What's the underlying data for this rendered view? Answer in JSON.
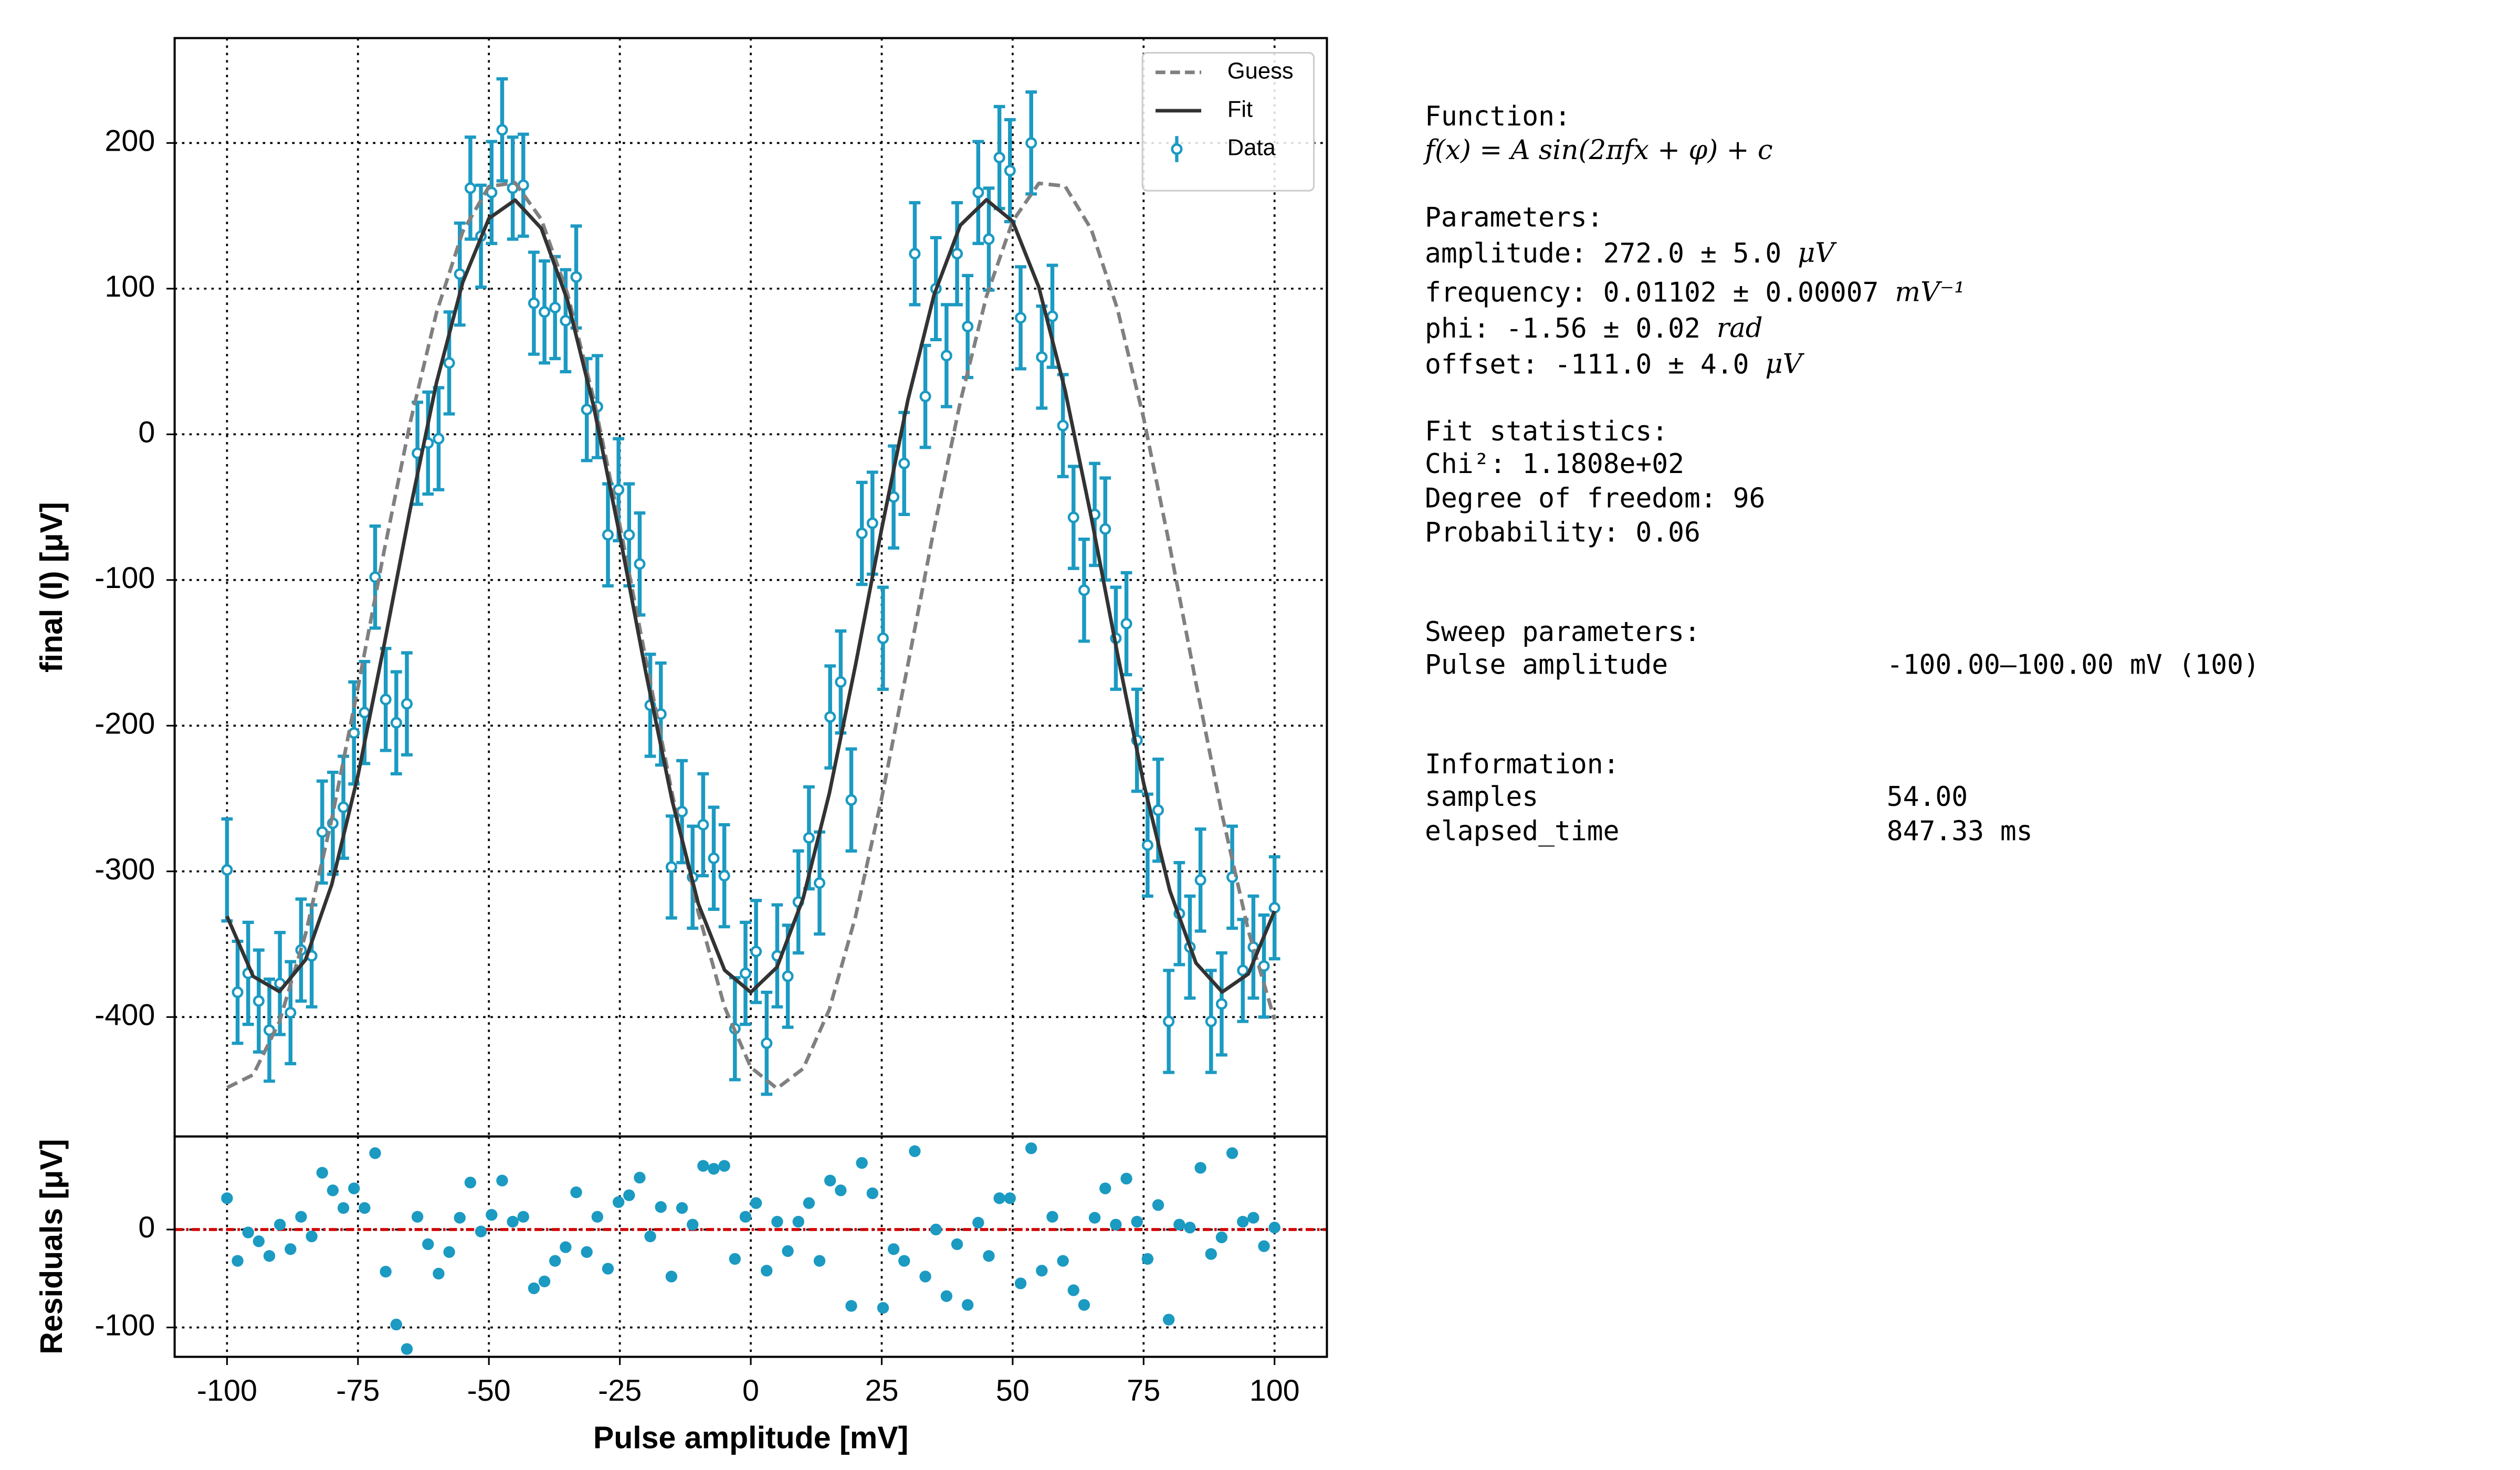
{
  "chart_data": [
    {
      "type": "line",
      "ylabel": "final (I) [μV]",
      "grid": true,
      "legend": "upper right",
      "show_xtick_labels": false,
      "xlim": [
        -110,
        110
      ],
      "ylim": [
        -482,
        272
      ],
      "xticks": [
        -100,
        -75,
        -50,
        -25,
        0,
        25,
        50,
        75,
        100
      ],
      "yticks": [
        -400,
        -300,
        -200,
        -100,
        0,
        100,
        200
      ],
      "series": [
        {
          "name": "Guess",
          "style": "dashed",
          "color": "#808080",
          "x": [
            -100,
            -95,
            -90,
            -85,
            -80,
            -75,
            -70,
            -65,
            -60,
            -55,
            -50,
            -45,
            -40,
            -35,
            -30,
            -25,
            -20,
            -15,
            -10,
            -5,
            0,
            5,
            10,
            15,
            20,
            25,
            30,
            35,
            40,
            45,
            50,
            55,
            60,
            65,
            70,
            75,
            80,
            85,
            90,
            95,
            100
          ],
          "values": [
            -448.5,
            -439.6,
            -403.3,
            -343.0,
            -264.1,
            -173.7,
            -80.0,
            8.5,
            83.6,
            139.1,
            170.1,
            172.7,
            147.6,
            96.7,
            24.5,
            -62.4,
            -155.1,
            -246.8,
            -328.5,
            -393.1,
            -434.5,
            -449.0,
            -435.4,
            -394.8,
            -331.0,
            -249.6,
            -158.1,
            -64.7,
            22.2,
            94.8,
            146.3,
            172.3,
            170.4,
            140.8,
            86.1,
            11.2,
            -77.0,
            -170.7,
            -261.3,
            -340.7,
            -401.7
          ]
        },
        {
          "name": "Fit",
          "style": "solid",
          "color": "#333333",
          "x": [
            -100,
            -95,
            -90,
            -85,
            -80,
            -75,
            -70,
            -65,
            -60,
            -55,
            -50,
            -45,
            -40,
            -35,
            -30,
            -25,
            -20,
            -15,
            -10,
            -5,
            0,
            5,
            10,
            15,
            20,
            25,
            30,
            35,
            40,
            45,
            50,
            55,
            60,
            65,
            70,
            75,
            80,
            85,
            90,
            95,
            100
          ],
          "values": [
            -330.8,
            -372.1,
            -382.5,
            -360.6,
            -309.0,
            -234.2,
            -144.5,
            -51.0,
            35.5,
            104.3,
            148.2,
            160.8,
            141.4,
            92.0,
            19.2,
            -69.6,
            -164.2,
            -251.6,
            -322.4,
            -367.8,
            -383.0,
            -365.8,
            -318.5,
            -246.4,
            -158.3,
            -64.7,
            23.6,
            95.8,
            143.5,
            161.0,
            146.2,
            101.0,
            30.4,
            -56.8,
            -150.5,
            -239.4,
            -313.2,
            -362.9,
            -382.8,
            -370.4,
            -327.2
          ]
        },
        {
          "name": "Data",
          "style": "errorbar",
          "color": "#1b9ac2",
          "error": 35,
          "x": [
            -100,
            -97.98,
            -95.96,
            -93.94,
            -91.92,
            -89.9,
            -87.88,
            -85.86,
            -83.84,
            -81.82,
            -79.8,
            -77.78,
            -75.76,
            -73.74,
            -71.72,
            -69.7,
            -67.68,
            -65.66,
            -63.64,
            -61.62,
            -59.6,
            -57.58,
            -55.56,
            -53.54,
            -51.52,
            -49.49,
            -47.47,
            -45.45,
            -43.43,
            -41.41,
            -39.39,
            -37.37,
            -35.35,
            -33.33,
            -31.31,
            -29.29,
            -27.27,
            -25.25,
            -23.23,
            -21.21,
            -19.19,
            -17.17,
            -15.15,
            -13.13,
            -11.11,
            -9.09,
            -7.07,
            -5.05,
            -3.03,
            -1.01,
            1.01,
            3.03,
            5.05,
            7.07,
            9.09,
            11.11,
            13.13,
            15.15,
            17.17,
            19.19,
            21.21,
            23.23,
            25.25,
            27.27,
            29.29,
            31.31,
            33.33,
            35.35,
            37.37,
            39.39,
            41.41,
            43.43,
            45.45,
            47.47,
            49.49,
            51.52,
            53.54,
            55.56,
            57.58,
            59.6,
            61.62,
            63.64,
            65.66,
            67.68,
            69.7,
            71.72,
            73.74,
            75.76,
            77.78,
            79.8,
            81.82,
            83.84,
            85.86,
            87.88,
            89.9,
            91.92,
            93.94,
            95.96,
            97.98,
            100
          ],
          "values": [
            -299,
            -383,
            -370,
            -389,
            -409,
            -377,
            -397,
            -354,
            -358,
            -273,
            -267,
            -256,
            -205,
            -191,
            -98,
            -182,
            -198,
            -185,
            -13,
            -6,
            -3,
            49,
            110,
            169,
            136,
            166,
            209,
            169,
            171,
            90,
            84,
            87,
            78,
            108,
            17,
            19,
            -69,
            -38,
            -69,
            -89,
            -186,
            -192,
            -297,
            -259,
            -304,
            -268,
            -291,
            -303,
            -408,
            -370,
            -355,
            -418,
            -358,
            -372,
            -321,
            -277,
            -308,
            -194,
            -170,
            -251,
            -68,
            -61,
            -140,
            -43,
            -20,
            124,
            26,
            100,
            54,
            124,
            74,
            166,
            134,
            190,
            181,
            80,
            200,
            53,
            81,
            6,
            -57,
            -107,
            -55,
            -65,
            -140,
            -130,
            -210,
            -282,
            -258,
            -403,
            -329,
            -352,
            -306,
            -403,
            -391,
            -304,
            -368,
            -352,
            -365,
            -325
          ]
        }
      ]
    },
    {
      "type": "scatter",
      "ylabel": "Residuals [μV]",
      "xlabel": "Pulse amplitude [mV]",
      "grid": true,
      "show_xtick_labels": true,
      "xlim": [
        -110,
        110
      ],
      "ylim": [
        -130,
        95
      ],
      "xticks": [
        -100,
        -75,
        -50,
        -25,
        0,
        25,
        50,
        75,
        100
      ],
      "yticks": [
        -100,
        0
      ],
      "hline": 0,
      "hline_color": "#d40000",
      "series": [
        {
          "color": "#1b9ac2",
          "x": [
            -100,
            -97.98,
            -95.96,
            -93.94,
            -91.92,
            -89.9,
            -87.88,
            -85.86,
            -83.84,
            -81.82,
            -79.8,
            -77.78,
            -75.76,
            -73.74,
            -71.72,
            -69.7,
            -67.68,
            -65.66,
            -63.64,
            -61.62,
            -59.6,
            -57.58,
            -55.56,
            -53.54,
            -51.52,
            -49.49,
            -47.47,
            -45.45,
            -43.43,
            -41.41,
            -39.39,
            -37.37,
            -35.35,
            -33.33,
            -31.31,
            -29.29,
            -27.27,
            -25.25,
            -23.23,
            -21.21,
            -19.19,
            -17.17,
            -15.15,
            -13.13,
            -11.11,
            -9.09,
            -7.07,
            -5.05,
            -3.03,
            -1.01,
            1.01,
            3.03,
            5.05,
            7.07,
            9.09,
            11.11,
            13.13,
            15.15,
            17.17,
            19.19,
            21.21,
            23.23,
            25.25,
            27.27,
            29.29,
            31.31,
            33.33,
            35.35,
            37.37,
            39.39,
            41.41,
            43.43,
            45.45,
            47.47,
            49.49,
            51.52,
            53.54,
            55.56,
            57.58,
            59.6,
            61.62,
            63.64,
            65.66,
            67.68,
            69.7,
            71.72,
            73.74,
            75.76,
            77.78,
            79.8,
            81.82,
            83.84,
            85.86,
            87.88,
            89.9,
            91.92,
            93.94,
            95.96,
            97.98,
            100
          ],
          "values": [
            32,
            -32,
            -3,
            -12,
            -27,
            5,
            -20,
            13,
            -7,
            58,
            40,
            22,
            42,
            22,
            78,
            -43,
            -97,
            -122,
            13,
            -15,
            -45,
            -23,
            12,
            48,
            -2,
            15,
            50,
            8,
            13,
            -60,
            -53,
            -32,
            -18,
            38,
            -23,
            13,
            -40,
            28,
            35,
            53,
            -7,
            23,
            -48,
            22,
            5,
            65,
            62,
            65,
            -30,
            13,
            27,
            -42,
            8,
            -22,
            8,
            27,
            -32,
            50,
            40,
            -78,
            68,
            37,
            -80,
            -20,
            -32,
            80,
            -48,
            0,
            -68,
            -15,
            -77,
            7,
            -27,
            32,
            32,
            -55,
            83,
            -42,
            13,
            -32,
            -62,
            -77,
            12,
            42,
            5,
            52,
            8,
            -30,
            25,
            -92,
            5,
            2,
            63,
            -25,
            -8,
            78,
            8,
            12,
            -17,
            2
          ]
        }
      ]
    }
  ],
  "info_panel": {
    "function_header": "Function:",
    "function_formula": "f(x) = A sin(2πfx + φ) + c",
    "parameters_header": "Parameters:",
    "parameters": [
      {
        "text": "amplitude: 272.0 ± 5.0",
        "unit": "μV"
      },
      {
        "text": "frequency: 0.01102 ± 0.00007",
        "unit": "mV⁻¹"
      },
      {
        "text": "phi: -1.56 ± 0.02",
        "unit": "rad"
      },
      {
        "text": "offset: -111.0 ± 4.0",
        "unit": "μV"
      }
    ],
    "fit_header": "Fit statistics:",
    "fit_lines": [
      "Chi²: 1.1808e+02",
      "Degree of freedom: 96",
      "Probability: 0.06"
    ],
    "sweep_header": "Sweep parameters:",
    "sweep_rows": [
      [
        "Pulse amplitude",
        "-100.00–100.00 mV (100)"
      ]
    ],
    "information_header": "Information:",
    "information_rows": [
      [
        "samples",
        "54.00"
      ],
      [
        "elapsed_time",
        "847.33 ms"
      ]
    ]
  }
}
